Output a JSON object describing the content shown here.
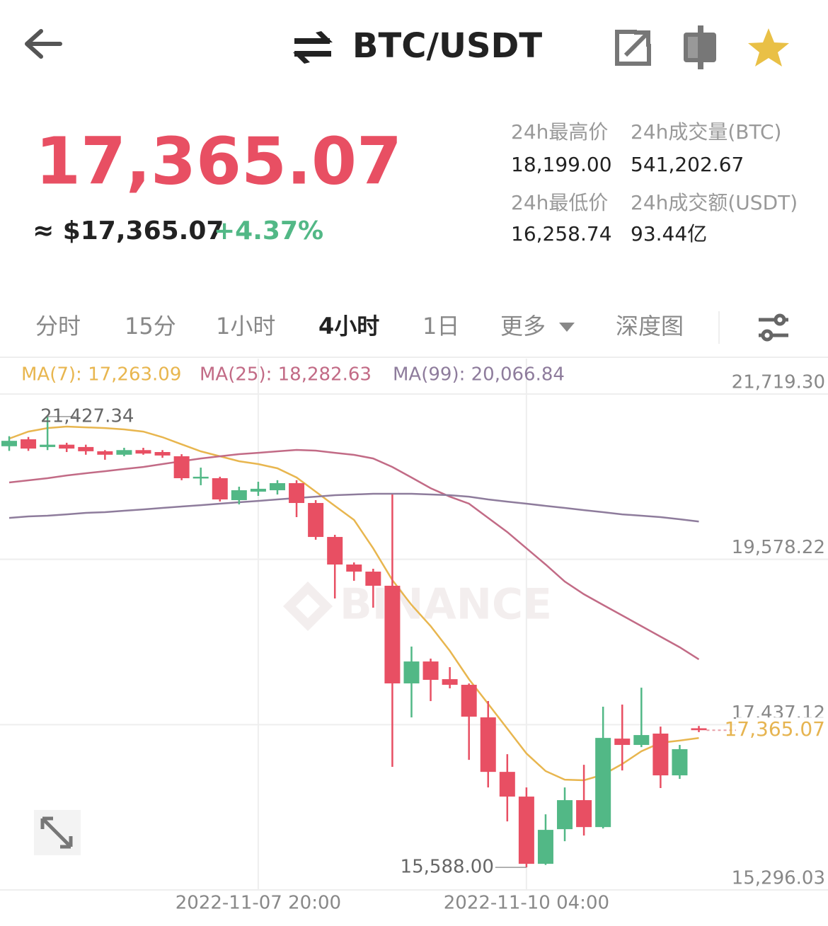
{
  "header": {
    "title": "BTC/USDT"
  },
  "ticker": {
    "price": "17,365.07",
    "approx": "≈ $17,365.07",
    "change": "+4.37%",
    "stats": [
      {
        "label": "24h最高价",
        "value": "18,199.00"
      },
      {
        "label": "24h成交量(BTC)",
        "value": "541,202.67"
      },
      {
        "label": "24h最低价",
        "value": "16,258.74"
      },
      {
        "label": "24h成交额(USDT)",
        "value": "93.44亿"
      }
    ]
  },
  "tabs": [
    {
      "label": "分时"
    },
    {
      "label": "15分"
    },
    {
      "label": "1小时"
    },
    {
      "label": "4小时",
      "selected": true
    },
    {
      "label": "1日"
    },
    {
      "label": "更多"
    },
    {
      "label": "深度图"
    }
  ],
  "chart_data": {
    "type": "candlestick",
    "watermark": "BINANCE",
    "categories": [
      null,
      null,
      null,
      null,
      null,
      null,
      null,
      null,
      null,
      null,
      null,
      null,
      null,
      "2022-11-07 20:00",
      null,
      null,
      null,
      null,
      null,
      null,
      null,
      null,
      null,
      null,
      null,
      null,
      null,
      "2022-11-10 04:00",
      null,
      null,
      null,
      null,
      null,
      null,
      null,
      null,
      null
    ],
    "open": [
      21043,
      21133,
      21033,
      21063,
      21033,
      20978,
      20933,
      20993,
      20968,
      20913,
      20629,
      20629,
      20345,
      20455,
      20473,
      20565,
      20308,
      19868,
      19511,
      19419,
      19236,
      17971,
      18255,
      18026,
      17953,
      17531,
      16825,
      16505,
      15634,
      16083,
      16459,
      16110,
      17256,
      17174,
      17321,
      16780,
      17390
    ],
    "high": [
      21173,
      21163,
      21427.34,
      21088,
      21063,
      20993,
      21023,
      21023,
      20993,
      20940,
      20766,
      20648,
      20519,
      20583,
      20603,
      20603,
      20345,
      19896,
      19538,
      19456,
      20418,
      18448,
      18292,
      18182,
      17971,
      17742,
      17054,
      16624,
      16275,
      16624,
      16917,
      17669,
      17697,
      17916,
      17412,
      17174,
      17420
    ],
    "low": [
      20983,
      20983,
      20993,
      20968,
      20933,
      20868,
      20913,
      20933,
      20893,
      20603,
      20538,
      20327,
      20290,
      20400,
      20418,
      20125,
      19832,
      19071,
      19300,
      18952,
      16890,
      17531,
      17742,
      17907,
      16981,
      16624,
      16184,
      15588,
      15620,
      15927,
      16001,
      16092,
      16844,
      17146,
      16615,
      16734,
      17340
    ],
    "close": [
      21113,
      21013,
      21063,
      21013,
      20978,
      20933,
      20993,
      20948,
      20923,
      20629,
      20648,
      20354,
      20473,
      20492,
      20565,
      20308,
      19868,
      19511,
      19419,
      19236,
      17971,
      18255,
      18017,
      17953,
      17540,
      16825,
      16505,
      15634,
      16074,
      16459,
      16110,
      17265,
      17174,
      17302,
      16780,
      17119,
      17365.07
    ],
    "up_color": "#52b886",
    "down_color": "#e84f63",
    "max_label": "21,427.34",
    "min_label": "15,588.00",
    "last_label": "17,365.07",
    "series": [
      {
        "name": "MA(7): 17,263.09",
        "color": "#e8b64f",
        "values": [
          21142,
          21233,
          21279,
          21298,
          21288,
          21279,
          21261,
          21233,
          21160,
          21068,
          20977,
          20913,
          20849,
          20812,
          20757,
          20638,
          20455,
          20271,
          20088,
          19721,
          19309,
          18988,
          18714,
          18393,
          18026,
          17706,
          17385,
          17064,
          16835,
          16725,
          16716,
          16789,
          16927,
          17092,
          17202,
          17230,
          17263.09
        ]
      },
      {
        "name": "MA(25): 18,282.63",
        "color": "#c26b86",
        "values": [
          20574,
          20601,
          20629,
          20665,
          20693,
          20720,
          20748,
          20775,
          20812,
          20849,
          20885,
          20913,
          20940,
          20958,
          20977,
          20995,
          20986,
          20958,
          20931,
          20885,
          20775,
          20638,
          20500,
          20390,
          20299,
          20115,
          19932,
          19721,
          19511,
          19291,
          19126,
          18988,
          18851,
          18714,
          18576,
          18439,
          18282.63
        ]
      },
      {
        "name": "MA(99): 20,066.84",
        "color": "#8e7c9c",
        "values": [
          20115,
          20134,
          20143,
          20161,
          20180,
          20189,
          20207,
          20225,
          20244,
          20262,
          20280,
          20299,
          20317,
          20335,
          20354,
          20372,
          20390,
          20409,
          20418,
          20427,
          20427,
          20427,
          20418,
          20409,
          20390,
          20354,
          20326,
          20299,
          20271,
          20244,
          20216,
          20189,
          20161,
          20143,
          20125,
          20097,
          20066.84
        ]
      }
    ],
    "ylim": [
      15296.03,
      21719.3
    ],
    "yticks": [
      {
        "value": 21719.3,
        "label": "21,719.30"
      },
      {
        "value": 19578.22,
        "label": "19,578.22"
      },
      {
        "value": 17437.12,
        "label": "17,437.12"
      },
      {
        "value": 15296.03,
        "label": "15,296.03"
      }
    ],
    "grid": true
  }
}
